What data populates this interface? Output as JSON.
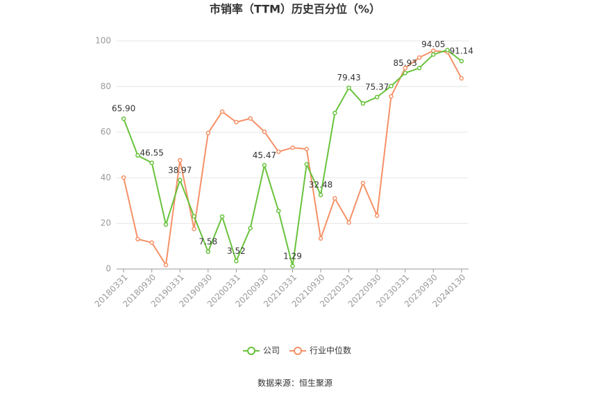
{
  "chart_data": {
    "type": "line",
    "title": "市销率（TTM）历史百分位（%）",
    "source": "数据来源：恒生聚源",
    "categories": [
      "20180331",
      null,
      "20180930",
      null,
      "20190331",
      null,
      "20190930",
      null,
      "20200331",
      null,
      "20200930",
      null,
      "20210331",
      null,
      "20210930",
      null,
      "20220331",
      null,
      "20220930",
      null,
      "20230331",
      null,
      "20230930",
      null,
      "20240130"
    ],
    "series": [
      {
        "name": "公司",
        "color": "#67c23a",
        "values": [
          65.9,
          49.8,
          46.55,
          19.5,
          38.97,
          23.1,
          7.58,
          23.0,
          3.52,
          17.9,
          45.47,
          25.5,
          1.29,
          45.9,
          32.48,
          68.4,
          79.43,
          72.6,
          75.37,
          80.2,
          85.93,
          88.1,
          94.05,
          96.0,
          91.14
        ],
        "value_labels": [
          "65.90",
          null,
          "46.55",
          null,
          "38.97",
          null,
          "7.58",
          null,
          "3.52",
          null,
          "45.47",
          null,
          "1.29",
          null,
          "32.48",
          null,
          "79.43",
          null,
          "75.37",
          null,
          "85.93",
          null,
          "94.05",
          null,
          "91.14"
        ]
      },
      {
        "name": "行业中位数",
        "color": "#f59066",
        "values": [
          40.1,
          13.1,
          11.6,
          1.8,
          47.7,
          17.6,
          59.6,
          69.0,
          64.4,
          66.0,
          60.2,
          51.4,
          53.2,
          52.6,
          13.4,
          31.0,
          20.4,
          37.7,
          23.4,
          75.7,
          88.1,
          92.7,
          95.7,
          95.1,
          83.6
        ]
      }
    ],
    "ylim": [
      0,
      100
    ],
    "yticks": [
      0,
      20,
      40,
      60,
      80,
      100
    ],
    "grid": true
  }
}
